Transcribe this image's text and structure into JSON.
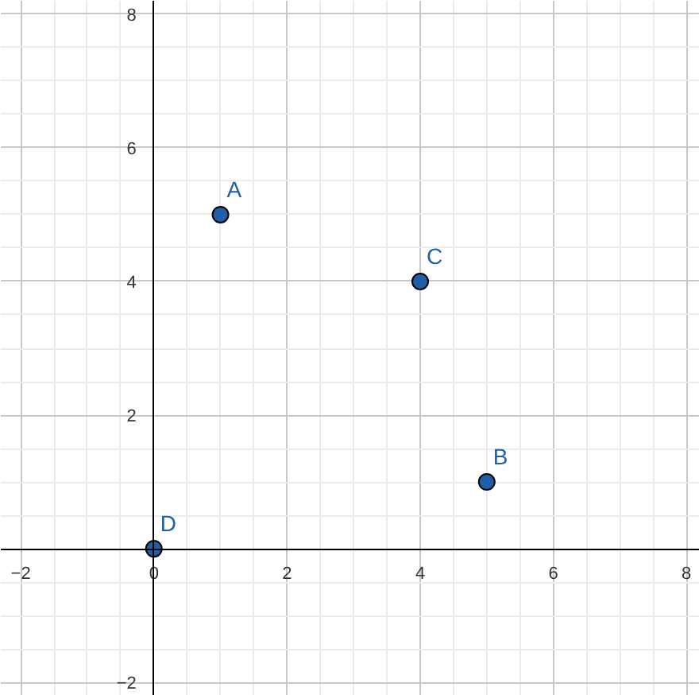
{
  "chart_data": {
    "type": "scatter",
    "x": [
      1,
      5,
      4,
      0
    ],
    "values": [
      5,
      1,
      4,
      0
    ],
    "color": "#1f5fa8",
    "marker": "circle",
    "grid": true,
    "xlim": [
      -2.3,
      8.2
    ],
    "ylim": [
      -2.2,
      8.2
    ],
    "xticks": [
      -2,
      0,
      2,
      4,
      6,
      8
    ],
    "yticks": [
      -2,
      2,
      4,
      6,
      8
    ],
    "annotations": [
      {
        "text": "A",
        "x": 1,
        "y": 5
      },
      {
        "text": "B",
        "x": 5,
        "y": 1
      },
      {
        "text": "C",
        "x": 4,
        "y": 4
      },
      {
        "text": "D",
        "x": 0,
        "y": 0
      }
    ]
  }
}
